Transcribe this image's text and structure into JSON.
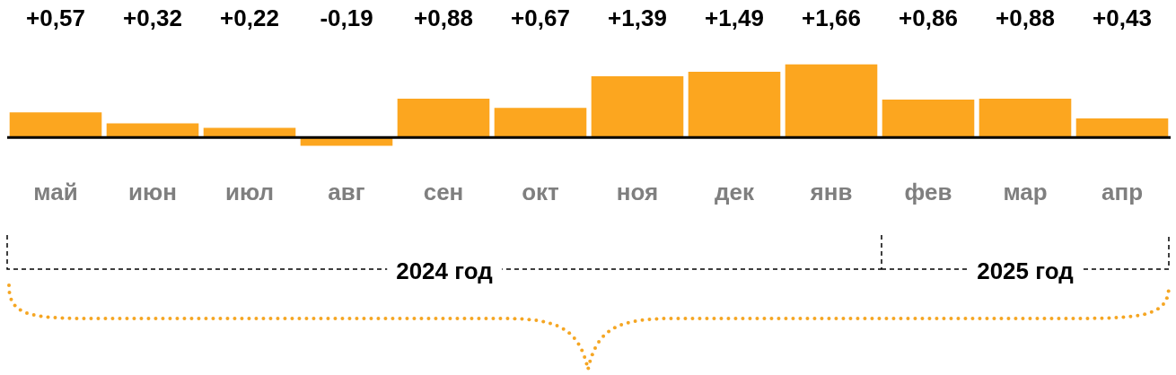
{
  "chart_data": {
    "type": "bar",
    "categories": [
      "май",
      "июн",
      "июл",
      "авг",
      "сен",
      "окт",
      "ноя",
      "дек",
      "янв",
      "фев",
      "мар",
      "апр"
    ],
    "series": [
      {
        "color": "#fca61f",
        "values": [
          0.57,
          0.32,
          0.22,
          -0.19,
          0.88,
          0.67,
          1.39,
          1.49,
          1.66,
          0.86,
          0.88,
          0.43
        ],
        "value_labels": [
          "+0,57",
          "+0,32",
          "+0,22",
          "-0,19",
          "+0,88",
          "+0,67",
          "+1,39",
          "+1,49",
          "+1,66",
          "+0,86",
          "+0,88",
          "+0,43"
        ]
      }
    ],
    "annotations": [
      "2024 год",
      "2025 год"
    ],
    "grid": false,
    "legend": false
  }
}
